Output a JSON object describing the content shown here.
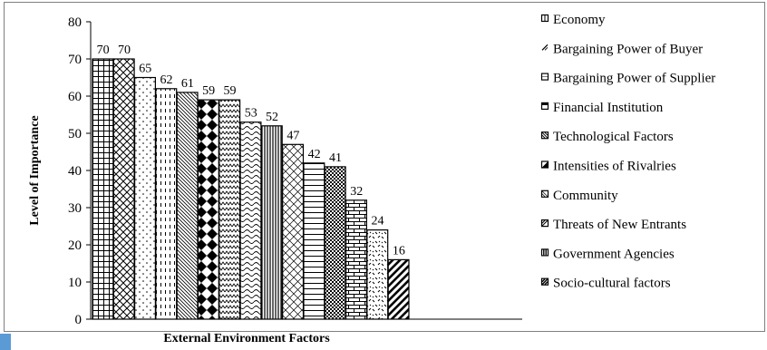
{
  "chart_data": {
    "type": "bar",
    "xlabel": "External Environment Factors",
    "ylabel": "Level of Importance",
    "ylim": [
      0,
      80
    ],
    "yticks": [
      0,
      10,
      20,
      30,
      40,
      50,
      60,
      70,
      80
    ],
    "values": [
      70,
      70,
      65,
      62,
      61,
      59,
      59,
      53,
      52,
      47,
      42,
      41,
      32,
      24,
      16
    ],
    "legend_position": "right",
    "legend": [
      "Economy",
      "Bargaining Power of Buyer",
      "Bargaining Power of Supplier",
      "Financial Institution",
      "Technological Factors",
      "Intensities of Rivalries",
      "Community",
      "Threats of New Entrants",
      "Government Agencies",
      "Socio-cultural factors"
    ],
    "patterns": [
      "grid",
      "diamond-lattice",
      "sparse-dots",
      "vertical-dashes",
      "diagonal-fine",
      "diamonds",
      "zigzag",
      "waves",
      "vertical-lines",
      "diagonal-cross",
      "horizontal-lines",
      "checker",
      "bricks",
      "confetti",
      "wide-diagonal"
    ],
    "legend_patterns": [
      "box-vertical",
      "slash",
      "box-light",
      "box-top",
      "box-diagonal-dense",
      "box-half-dark",
      "box-diagonal-light",
      "box-diagonal-2",
      "box-bars",
      "box-diagonal-bold"
    ],
    "bar_color": "#000000",
    "background": "#ffffff",
    "grid": false
  }
}
